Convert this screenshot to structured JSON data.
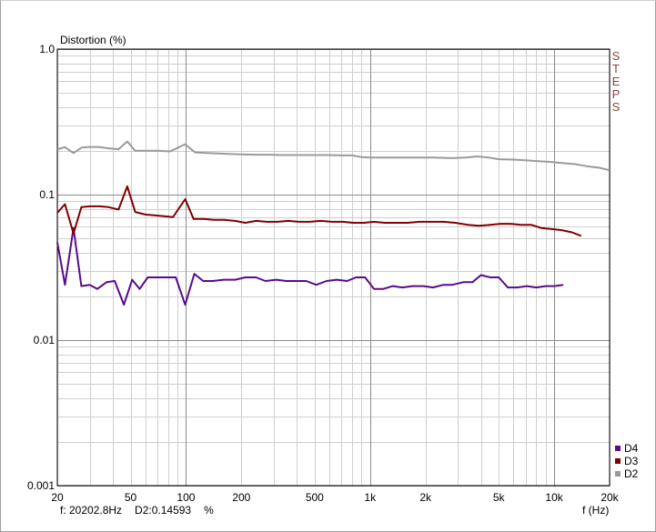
{
  "chart_data": {
    "type": "line",
    "ylabel": "Distortion (%)",
    "xlabel": "f (Hz)",
    "xscale": "log",
    "yscale": "log",
    "xlim": [
      20,
      20000
    ],
    "ylim": [
      0.001,
      1.0
    ],
    "grid": true,
    "legend_placement": "bottom-right",
    "side_label": [
      "S",
      "T",
      "E",
      "P",
      "S"
    ],
    "x_ticks": [
      {
        "value": 20,
        "label": "20"
      },
      {
        "value": 50,
        "label": "50"
      },
      {
        "value": 100,
        "label": "100"
      },
      {
        "value": 200,
        "label": "200"
      },
      {
        "value": 500,
        "label": "500"
      },
      {
        "value": 1000,
        "label": "1k"
      },
      {
        "value": 2000,
        "label": "2k"
      },
      {
        "value": 5000,
        "label": "5k"
      },
      {
        "value": 10000,
        "label": "10k"
      },
      {
        "value": 20000,
        "label": "20k"
      }
    ],
    "y_ticks": [
      {
        "value": 1.0,
        "label": "1.0"
      },
      {
        "value": 0.1,
        "label": "0.1"
      },
      {
        "value": 0.01,
        "label": "0.01"
      },
      {
        "value": 0.001,
        "label": "0.001"
      }
    ],
    "series": [
      {
        "name": "D4",
        "color": "#5a0a8a",
        "points": [
          [
            20,
            0.047
          ],
          [
            22,
            0.024
          ],
          [
            24.5,
            0.059
          ],
          [
            27,
            0.0235
          ],
          [
            30,
            0.024
          ],
          [
            33,
            0.0225
          ],
          [
            37,
            0.025
          ],
          [
            41,
            0.0255
          ],
          [
            46,
            0.0175
          ],
          [
            51,
            0.026
          ],
          [
            56,
            0.0225
          ],
          [
            62,
            0.027
          ],
          [
            70,
            0.027
          ],
          [
            78,
            0.027
          ],
          [
            88,
            0.027
          ],
          [
            99,
            0.0175
          ],
          [
            111,
            0.0285
          ],
          [
            124,
            0.0255
          ],
          [
            140,
            0.0255
          ],
          [
            160,
            0.026
          ],
          [
            185,
            0.026
          ],
          [
            210,
            0.027
          ],
          [
            240,
            0.027
          ],
          [
            270,
            0.0255
          ],
          [
            310,
            0.026
          ],
          [
            350,
            0.0255
          ],
          [
            400,
            0.0255
          ],
          [
            450,
            0.0255
          ],
          [
            510,
            0.024
          ],
          [
            580,
            0.0255
          ],
          [
            660,
            0.026
          ],
          [
            750,
            0.0255
          ],
          [
            840,
            0.027
          ],
          [
            940,
            0.027
          ],
          [
            1050,
            0.0225
          ],
          [
            1180,
            0.0225
          ],
          [
            1330,
            0.0235
          ],
          [
            1500,
            0.023
          ],
          [
            1700,
            0.0235
          ],
          [
            1950,
            0.0235
          ],
          [
            2200,
            0.023
          ],
          [
            2500,
            0.024
          ],
          [
            2800,
            0.024
          ],
          [
            3200,
            0.025
          ],
          [
            3600,
            0.025
          ],
          [
            4000,
            0.028
          ],
          [
            4500,
            0.027
          ],
          [
            5000,
            0.027
          ],
          [
            5600,
            0.023
          ],
          [
            6300,
            0.023
          ],
          [
            7100,
            0.0235
          ],
          [
            8000,
            0.023
          ],
          [
            9000,
            0.0235
          ],
          [
            10000,
            0.0235
          ],
          [
            11200,
            0.024
          ]
        ]
      },
      {
        "name": "D3",
        "color": "#800000",
        "points": [
          [
            20,
            0.075
          ],
          [
            22,
            0.086
          ],
          [
            24.5,
            0.054
          ],
          [
            27,
            0.082
          ],
          [
            30,
            0.083
          ],
          [
            34,
            0.083
          ],
          [
            38,
            0.082
          ],
          [
            43,
            0.079
          ],
          [
            48,
            0.114
          ],
          [
            53,
            0.076
          ],
          [
            60,
            0.073
          ],
          [
            67,
            0.072
          ],
          [
            76,
            0.071
          ],
          [
            85,
            0.07
          ],
          [
            99,
            0.093
          ],
          [
            110,
            0.068
          ],
          [
            125,
            0.068
          ],
          [
            142,
            0.067
          ],
          [
            162,
            0.067
          ],
          [
            185,
            0.066
          ],
          [
            210,
            0.064
          ],
          [
            240,
            0.066
          ],
          [
            275,
            0.065
          ],
          [
            315,
            0.065
          ],
          [
            360,
            0.066
          ],
          [
            410,
            0.065
          ],
          [
            470,
            0.065
          ],
          [
            540,
            0.066
          ],
          [
            620,
            0.065
          ],
          [
            710,
            0.065
          ],
          [
            810,
            0.064
          ],
          [
            930,
            0.064
          ],
          [
            1050,
            0.065
          ],
          [
            1200,
            0.064
          ],
          [
            1380,
            0.064
          ],
          [
            1600,
            0.064
          ],
          [
            1850,
            0.065
          ],
          [
            2150,
            0.065
          ],
          [
            2500,
            0.065
          ],
          [
            2900,
            0.064
          ],
          [
            3400,
            0.062
          ],
          [
            3900,
            0.061
          ],
          [
            4500,
            0.062
          ],
          [
            5100,
            0.063
          ],
          [
            5800,
            0.063
          ],
          [
            6600,
            0.062
          ],
          [
            7500,
            0.062
          ],
          [
            8500,
            0.059
          ],
          [
            9700,
            0.058
          ],
          [
            11000,
            0.057
          ],
          [
            12500,
            0.055
          ],
          [
            14000,
            0.052
          ]
        ]
      },
      {
        "name": "D2",
        "color": "#9a9a9a",
        "points": [
          [
            20,
            0.205
          ],
          [
            22,
            0.212
          ],
          [
            24.5,
            0.193
          ],
          [
            27,
            0.21
          ],
          [
            30,
            0.213
          ],
          [
            34,
            0.212
          ],
          [
            38,
            0.208
          ],
          [
            43,
            0.205
          ],
          [
            48,
            0.232
          ],
          [
            53,
            0.2
          ],
          [
            60,
            0.2
          ],
          [
            70,
            0.2
          ],
          [
            82,
            0.198
          ],
          [
            99,
            0.222
          ],
          [
            112,
            0.195
          ],
          [
            130,
            0.193
          ],
          [
            150,
            0.192
          ],
          [
            175,
            0.19
          ],
          [
            200,
            0.189
          ],
          [
            240,
            0.188
          ],
          [
            280,
            0.188
          ],
          [
            330,
            0.187
          ],
          [
            400,
            0.187
          ],
          [
            500,
            0.187
          ],
          [
            600,
            0.187
          ],
          [
            700,
            0.186
          ],
          [
            800,
            0.186
          ],
          [
            900,
            0.181
          ],
          [
            1000,
            0.18
          ],
          [
            1300,
            0.18
          ],
          [
            1700,
            0.18
          ],
          [
            2200,
            0.18
          ],
          [
            2800,
            0.178
          ],
          [
            3300,
            0.18
          ],
          [
            3800,
            0.183
          ],
          [
            4400,
            0.18
          ],
          [
            5000,
            0.175
          ],
          [
            6000,
            0.174
          ],
          [
            7000,
            0.172
          ],
          [
            8000,
            0.17
          ],
          [
            9500,
            0.168
          ],
          [
            11000,
            0.165
          ],
          [
            13000,
            0.162
          ],
          [
            15000,
            0.157
          ],
          [
            17500,
            0.153
          ],
          [
            20000,
            0.147
          ]
        ]
      }
    ],
    "legend": [
      {
        "name": "D4",
        "color": "#5a0a8a"
      },
      {
        "name": "D3",
        "color": "#800000"
      },
      {
        "name": "D2",
        "color": "#9a9a9a"
      }
    ]
  },
  "readout": {
    "frequency": "f: 20202.8Hz",
    "value": "D2:0.14593",
    "unit": "%"
  }
}
